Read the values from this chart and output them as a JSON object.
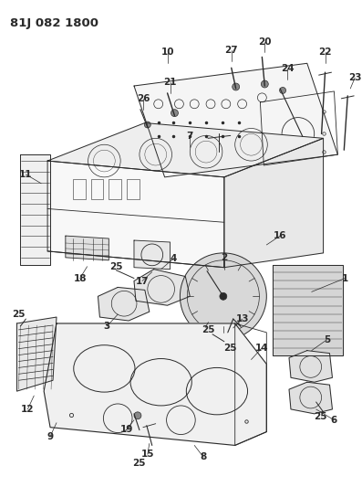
{
  "title": "81J 082 1800",
  "bg_color": "#ffffff",
  "line_color": "#2a2a2a",
  "title_fontsize": 9.5,
  "label_fontsize": 7.5,
  "figsize": [
    3.97,
    5.33
  ],
  "dpi": 100
}
